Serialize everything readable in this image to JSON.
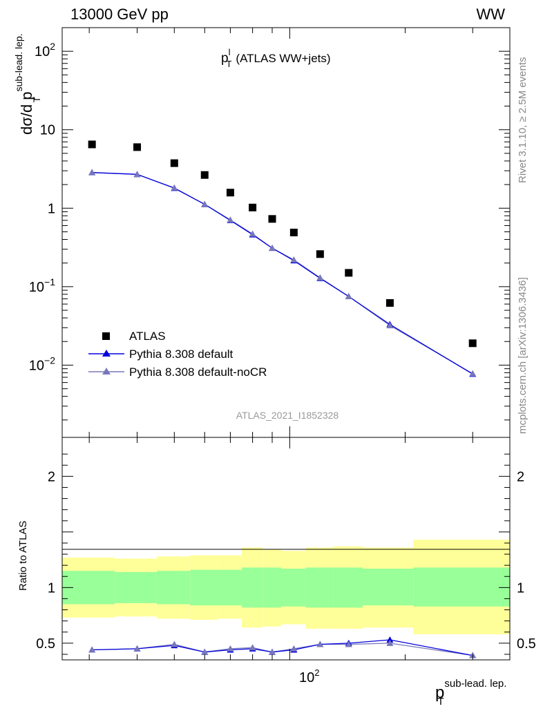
{
  "header": {
    "energy": "13000 GeV pp",
    "process": "WW"
  },
  "side": {
    "rivet": "Rivet 3.1.10, ≥ 2.5M events",
    "mcplots": "mcplots.cern.ch [arXiv:1306.3436]"
  },
  "colors": {
    "data": "#000000",
    "default": "#0000dd",
    "nocr": "#7777bb",
    "band_inner": "#99ff99",
    "band_outer": "#ffff99"
  },
  "chart_data": [
    {
      "type": "scatter",
      "title_main": "p",
      "title_sup": "l",
      "title_sub": "T",
      "title_rest": "(ATLAS WW+jets)",
      "ylabel": "dσ/d p",
      "ylabel_sup": "sub-lead. lep.",
      "ylabel_sub": "T",
      "yscale": "log",
      "ylim": [
        0.0012,
        200
      ],
      "yticks": [
        {
          "label": "10",
          "sup": "2"
        },
        {
          "label": "10",
          "sup": ""
        },
        {
          "label": "1",
          "sup": ""
        },
        {
          "label": "10",
          "sup": "−1"
        },
        {
          "label": "10",
          "sup": "−2"
        }
      ],
      "watermark": "ATLAS_2021_I1852328",
      "legend": [
        "ATLAS",
        "Pythia 8.308 default",
        "Pythia 8.308 default-noCR"
      ],
      "legend_position": "bottom-left",
      "x": [
        30.5,
        40,
        50,
        60,
        70,
        80,
        90,
        102.5,
        120,
        142.5,
        182.5,
        300
      ],
      "series": [
        {
          "name": "ATLAS",
          "values": [
            6.5,
            6.0,
            3.75,
            2.65,
            1.58,
            1.02,
            0.73,
            0.49,
            0.26,
            0.15,
            0.062,
            0.019
          ]
        },
        {
          "name": "Pythia 8.308 default",
          "values": [
            2.85,
            2.7,
            1.8,
            1.12,
            0.7,
            0.46,
            0.31,
            0.215,
            0.128,
            0.075,
            0.033,
            0.0077
          ]
        },
        {
          "name": "Pythia 8.308 default-noCR",
          "values": [
            2.85,
            2.7,
            1.82,
            1.12,
            0.71,
            0.47,
            0.31,
            0.22,
            0.13,
            0.075,
            0.032,
            0.0078
          ]
        }
      ]
    },
    {
      "type": "line",
      "ylabel": "Ratio to ATLAS",
      "ylim": [
        0.35,
        2.35
      ],
      "yticks": [
        "0.5",
        "1",
        "2"
      ],
      "xscale": "log",
      "xlim": [
        25.5,
        375
      ],
      "xtick_label": "10",
      "xtick_sup": "2",
      "xlabel": "p",
      "xlabel_sup": "sub-lead. lep.",
      "xlabel_sub": "T",
      "bins": [
        [
          25.5,
          35
        ],
        [
          35,
          45
        ],
        [
          45,
          55
        ],
        [
          55,
          65
        ],
        [
          65,
          75
        ],
        [
          75,
          85
        ],
        [
          85,
          95
        ],
        [
          95,
          110
        ],
        [
          110,
          130
        ],
        [
          130,
          155
        ],
        [
          155,
          210
        ],
        [
          210,
          375
        ]
      ],
      "band_inner": [
        [
          0.85,
          1.15
        ],
        [
          0.86,
          1.14
        ],
        [
          0.85,
          1.15
        ],
        [
          0.84,
          1.16
        ],
        [
          0.84,
          1.16
        ],
        [
          0.82,
          1.18
        ],
        [
          0.82,
          1.18
        ],
        [
          0.83,
          1.17
        ],
        [
          0.82,
          1.18
        ],
        [
          0.82,
          1.18
        ],
        [
          0.84,
          1.17
        ],
        [
          0.83,
          1.18
        ]
      ],
      "band_outer": [
        [
          0.73,
          1.27
        ],
        [
          0.74,
          1.26
        ],
        [
          0.72,
          1.28
        ],
        [
          0.71,
          1.29
        ],
        [
          0.72,
          1.29
        ],
        [
          0.64,
          1.36
        ],
        [
          0.65,
          1.34
        ],
        [
          0.67,
          1.33
        ],
        [
          0.63,
          1.36
        ],
        [
          0.63,
          1.37
        ],
        [
          0.64,
          1.36
        ],
        [
          0.58,
          1.43
        ]
      ],
      "x": [
        30.5,
        40,
        50,
        60,
        70,
        80,
        90,
        102.5,
        120,
        142.5,
        182.5,
        300
      ],
      "series": [
        {
          "name": "Pythia 8.308 default",
          "values": [
            0.44,
            0.45,
            0.48,
            0.42,
            0.44,
            0.45,
            0.42,
            0.44,
            0.49,
            0.5,
            0.53,
            0.39
          ]
        },
        {
          "name": "Pythia 8.308 default-noCR",
          "values": [
            0.44,
            0.45,
            0.49,
            0.42,
            0.45,
            0.46,
            0.42,
            0.45,
            0.49,
            0.49,
            0.5,
            0.39
          ]
        }
      ]
    }
  ]
}
